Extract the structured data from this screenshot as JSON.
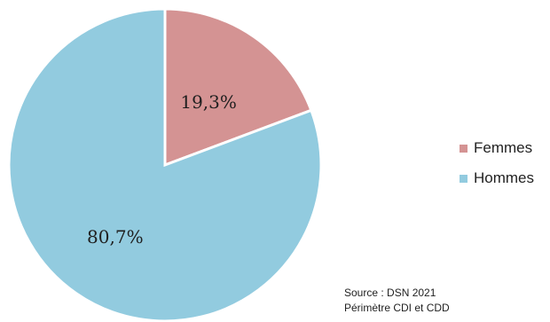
{
  "chart_data": {
    "type": "pie",
    "title": "",
    "slices": [
      {
        "name": "Femmes",
        "value": 19.3,
        "label": "19,3%",
        "color": "#d49393"
      },
      {
        "name": "Hommes",
        "value": 80.7,
        "label": "80,7%",
        "color": "#92cbdf"
      }
    ],
    "legend_placement": "right",
    "start_angle": "12 o'clock",
    "direction": "clockwise"
  },
  "source": {
    "line1": "Source : DSN 2021",
    "line2": "Périmètre CDI et CDD"
  }
}
